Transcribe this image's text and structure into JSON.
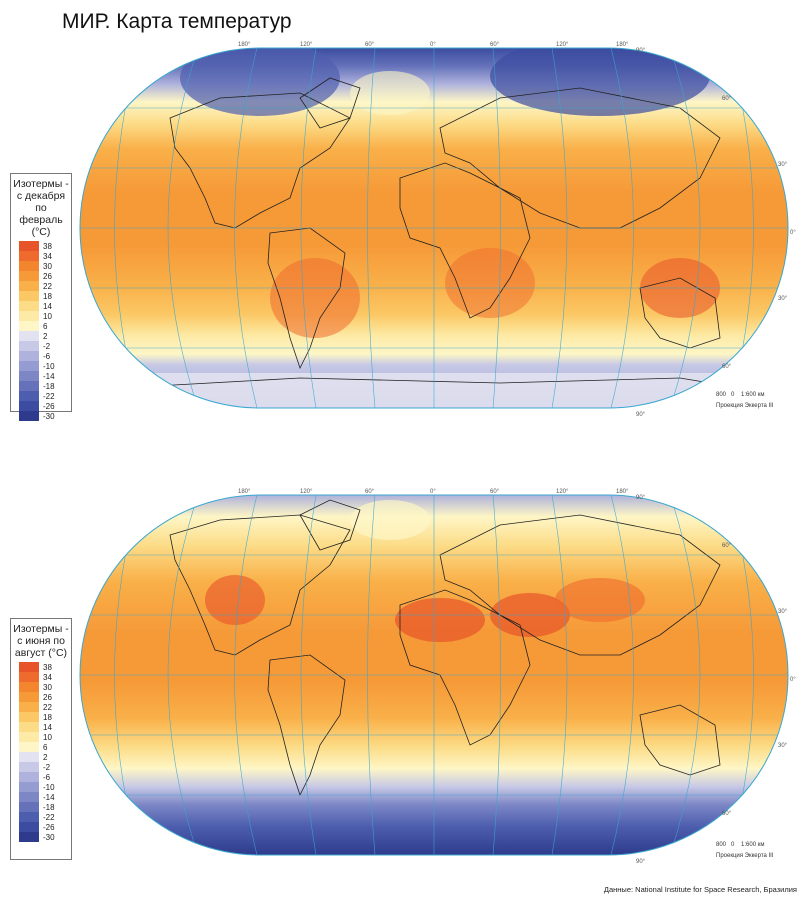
{
  "title": "МИР. Карта температур",
  "lon_labels": [
    "180°",
    "120°",
    "60°",
    "0°",
    "60°",
    "120°",
    "180°"
  ],
  "lat_labels": [
    "90°",
    "60°",
    "30°",
    "0°",
    "30°",
    "60°",
    "90°"
  ],
  "scale_bar": {
    "left": "800",
    "zero": "0",
    "ratio": "1:600 км"
  },
  "projection": "Проекция Эккерта III",
  "colors": {
    "t38": "#e8542a",
    "t34": "#ee6b2d",
    "t30": "#f3852f",
    "t26": "#f69a38",
    "t22": "#f9b049",
    "t18": "#fbc865",
    "t14": "#fcdc87",
    "t10": "#fdeaa6",
    "t6": "#fef6c6",
    "t2": "#e2e2f0",
    "tm2": "#c7c9e6",
    "tm6": "#aeb2dc",
    "tm10": "#959cd1",
    "tm14": "#7d87c6",
    "tm18": "#6572ba",
    "tm22": "#4e5eae",
    "tm26": "#3c4ca0",
    "tm30": "#2e3b8c",
    "grid": "#3aa6d0",
    "land": "#222222"
  },
  "maps": [
    {
      "id": "dec-feb",
      "legend_title": "Изотермы - с декабря по февраль (°C)",
      "legend_values": [
        "38",
        "34",
        "30",
        "26",
        "22",
        "18",
        "14",
        "10",
        "6",
        "2",
        "-2",
        "-6",
        "-10",
        "-14",
        "-18",
        "-22",
        "-26",
        "-30"
      ]
    },
    {
      "id": "jun-aug",
      "legend_title": "Изотермы - с июня по август (°C)",
      "legend_values": [
        "38",
        "34",
        "30",
        "26",
        "22",
        "18",
        "14",
        "10",
        "6",
        "2",
        "-2",
        "-6",
        "-10",
        "-14",
        "-18",
        "-22",
        "-26",
        "-30"
      ]
    }
  ],
  "credits": "Данные: National Institute for Space Research, Бразилия"
}
